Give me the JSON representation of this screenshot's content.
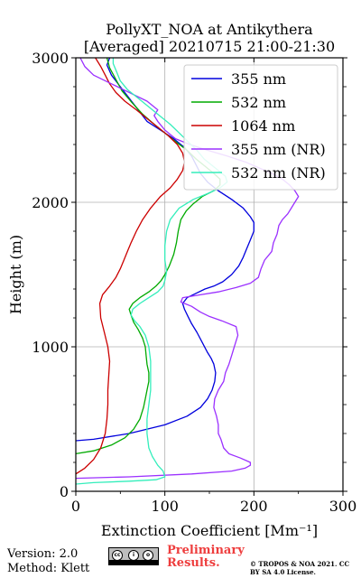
{
  "chart_data": {
    "type": "line",
    "title": "PollyXT_NOA at Antikythera",
    "subtitle": "[Averaged] 20210715 21:00-21:30",
    "xlabel": "Extinction Coefficient [Mm⁻¹]",
    "ylabel": "Height (m)",
    "xlim": [
      0,
      300
    ],
    "ylim": [
      0,
      3000
    ],
    "xticks": [
      "0",
      "100",
      "200",
      "300"
    ],
    "yticks": [
      "0",
      "1000",
      "2000",
      "3000"
    ],
    "grid": true,
    "legend_position": "top-right",
    "series": [
      {
        "name": "355 nm",
        "color": "#0000dd",
        "points": [
          [
            0,
            350
          ],
          [
            20,
            360
          ],
          [
            60,
            400
          ],
          [
            100,
            460
          ],
          [
            125,
            520
          ],
          [
            140,
            580
          ],
          [
            148,
            640
          ],
          [
            153,
            700
          ],
          [
            156,
            760
          ],
          [
            157,
            820
          ],
          [
            155,
            880
          ],
          [
            152,
            920
          ],
          [
            148,
            960
          ],
          [
            142,
            1030
          ],
          [
            136,
            1100
          ],
          [
            130,
            1160
          ],
          [
            126,
            1210
          ],
          [
            122,
            1260
          ],
          [
            120,
            1300
          ],
          [
            125,
            1340
          ],
          [
            135,
            1370
          ],
          [
            145,
            1400
          ],
          [
            155,
            1420
          ],
          [
            165,
            1450
          ],
          [
            175,
            1500
          ],
          [
            183,
            1560
          ],
          [
            188,
            1620
          ],
          [
            192,
            1680
          ],
          [
            196,
            1740
          ],
          [
            200,
            1800
          ],
          [
            200,
            1860
          ],
          [
            196,
            1900
          ],
          [
            188,
            1960
          ],
          [
            175,
            2020
          ],
          [
            160,
            2080
          ],
          [
            148,
            2140
          ],
          [
            140,
            2200
          ],
          [
            135,
            2260
          ],
          [
            130,
            2320
          ],
          [
            122,
            2380
          ],
          [
            110,
            2440
          ],
          [
            95,
            2500
          ],
          [
            80,
            2560
          ],
          [
            70,
            2640
          ],
          [
            60,
            2720
          ],
          [
            50,
            2800
          ],
          [
            40,
            2880
          ],
          [
            35,
            2950
          ],
          [
            38,
            3000
          ]
        ]
      },
      {
        "name": "532 nm",
        "color": "#00aa00",
        "points": [
          [
            0,
            260
          ],
          [
            20,
            280
          ],
          [
            40,
            320
          ],
          [
            55,
            370
          ],
          [
            65,
            430
          ],
          [
            72,
            500
          ],
          [
            76,
            580
          ],
          [
            78,
            640
          ],
          [
            80,
            700
          ],
          [
            82,
            760
          ],
          [
            82,
            820
          ],
          [
            80,
            880
          ],
          [
            79,
            940
          ],
          [
            78,
            1000
          ],
          [
            75,
            1060
          ],
          [
            70,
            1120
          ],
          [
            65,
            1170
          ],
          [
            62,
            1220
          ],
          [
            60,
            1260
          ],
          [
            64,
            1300
          ],
          [
            72,
            1340
          ],
          [
            82,
            1380
          ],
          [
            90,
            1420
          ],
          [
            96,
            1460
          ],
          [
            100,
            1500
          ],
          [
            105,
            1560
          ],
          [
            110,
            1640
          ],
          [
            113,
            1720
          ],
          [
            115,
            1800
          ],
          [
            118,
            1880
          ],
          [
            124,
            1940
          ],
          [
            132,
            1990
          ],
          [
            142,
            2040
          ],
          [
            155,
            2080
          ],
          [
            162,
            2120
          ],
          [
            162,
            2160
          ],
          [
            155,
            2200
          ],
          [
            145,
            2250
          ],
          [
            135,
            2300
          ],
          [
            125,
            2360
          ],
          [
            112,
            2420
          ],
          [
            100,
            2480
          ],
          [
            88,
            2540
          ],
          [
            75,
            2610
          ],
          [
            63,
            2690
          ],
          [
            52,
            2770
          ],
          [
            45,
            2850
          ],
          [
            38,
            2930
          ],
          [
            35,
            3000
          ]
        ]
      },
      {
        "name": "1064 nm",
        "color": "#cc0000",
        "points": [
          [
            0,
            120
          ],
          [
            10,
            160
          ],
          [
            20,
            220
          ],
          [
            28,
            300
          ],
          [
            33,
            400
          ],
          [
            35,
            500
          ],
          [
            36,
            600
          ],
          [
            36,
            700
          ],
          [
            37,
            800
          ],
          [
            38,
            900
          ],
          [
            36,
            1000
          ],
          [
            32,
            1100
          ],
          [
            28,
            1200
          ],
          [
            27,
            1300
          ],
          [
            30,
            1360
          ],
          [
            38,
            1420
          ],
          [
            45,
            1480
          ],
          [
            50,
            1540
          ],
          [
            54,
            1600
          ],
          [
            58,
            1660
          ],
          [
            62,
            1720
          ],
          [
            68,
            1800
          ],
          [
            75,
            1880
          ],
          [
            84,
            1960
          ],
          [
            95,
            2040
          ],
          [
            106,
            2100
          ],
          [
            114,
            2160
          ],
          [
            120,
            2220
          ],
          [
            122,
            2280
          ],
          [
            120,
            2340
          ],
          [
            114,
            2400
          ],
          [
            104,
            2460
          ],
          [
            92,
            2520
          ],
          [
            80,
            2580
          ],
          [
            68,
            2640
          ],
          [
            55,
            2700
          ],
          [
            45,
            2760
          ],
          [
            38,
            2820
          ],
          [
            33,
            2880
          ],
          [
            28,
            2940
          ],
          [
            22,
            3000
          ]
        ]
      },
      {
        "name": "355 nm (NR)",
        "color": "#9b30ff",
        "points": [
          [
            0,
            90
          ],
          [
            60,
            100
          ],
          [
            130,
            120
          ],
          [
            175,
            140
          ],
          [
            190,
            160
          ],
          [
            196,
            180
          ],
          [
            196,
            200
          ],
          [
            185,
            230
          ],
          [
            172,
            260
          ],
          [
            166,
            300
          ],
          [
            163,
            360
          ],
          [
            160,
            400
          ],
          [
            160,
            460
          ],
          [
            158,
            520
          ],
          [
            155,
            580
          ],
          [
            156,
            640
          ],
          [
            160,
            700
          ],
          [
            166,
            760
          ],
          [
            168,
            820
          ],
          [
            172,
            880
          ],
          [
            175,
            940
          ],
          [
            178,
            1000
          ],
          [
            182,
            1080
          ],
          [
            180,
            1140
          ],
          [
            164,
            1180
          ],
          [
            150,
            1210
          ],
          [
            140,
            1240
          ],
          [
            130,
            1280
          ],
          [
            118,
            1310
          ],
          [
            120,
            1340
          ],
          [
            140,
            1360
          ],
          [
            160,
            1380
          ],
          [
            180,
            1410
          ],
          [
            196,
            1440
          ],
          [
            205,
            1480
          ],
          [
            208,
            1540
          ],
          [
            212,
            1600
          ],
          [
            220,
            1660
          ],
          [
            222,
            1720
          ],
          [
            226,
            1780
          ],
          [
            228,
            1840
          ],
          [
            232,
            1880
          ],
          [
            238,
            1920
          ],
          [
            242,
            1960
          ],
          [
            246,
            2000
          ],
          [
            250,
            2040
          ],
          [
            246,
            2080
          ],
          [
            240,
            2120
          ],
          [
            232,
            2160
          ],
          [
            220,
            2200
          ],
          [
            205,
            2240
          ],
          [
            190,
            2280
          ],
          [
            170,
            2320
          ],
          [
            148,
            2360
          ],
          [
            128,
            2400
          ],
          [
            112,
            2440
          ],
          [
            100,
            2500
          ],
          [
            92,
            2560
          ],
          [
            88,
            2600
          ],
          [
            92,
            2640
          ],
          [
            80,
            2700
          ],
          [
            60,
            2760
          ],
          [
            40,
            2820
          ],
          [
            20,
            2880
          ],
          [
            10,
            2940
          ],
          [
            5,
            3000
          ]
        ]
      },
      {
        "name": "532 nm (NR)",
        "color": "#33eebb",
        "points": [
          [
            0,
            50
          ],
          [
            20,
            60
          ],
          [
            60,
            70
          ],
          [
            90,
            80
          ],
          [
            100,
            100
          ],
          [
            98,
            140
          ],
          [
            92,
            180
          ],
          [
            86,
            240
          ],
          [
            82,
            300
          ],
          [
            80,
            400
          ],
          [
            80,
            500
          ],
          [
            82,
            600
          ],
          [
            84,
            700
          ],
          [
            84,
            800
          ],
          [
            84,
            900
          ],
          [
            82,
            1000
          ],
          [
            78,
            1080
          ],
          [
            72,
            1140
          ],
          [
            66,
            1180
          ],
          [
            62,
            1220
          ],
          [
            64,
            1260
          ],
          [
            72,
            1300
          ],
          [
            82,
            1340
          ],
          [
            92,
            1380
          ],
          [
            98,
            1420
          ],
          [
            100,
            1460
          ],
          [
            102,
            1520
          ],
          [
            100,
            1600
          ],
          [
            100,
            1700
          ],
          [
            102,
            1800
          ],
          [
            106,
            1880
          ],
          [
            116,
            1960
          ],
          [
            132,
            2020
          ],
          [
            148,
            2060
          ],
          [
            162,
            2100
          ],
          [
            170,
            2140
          ],
          [
            168,
            2180
          ],
          [
            160,
            2220
          ],
          [
            152,
            2260
          ],
          [
            144,
            2300
          ],
          [
            136,
            2360
          ],
          [
            126,
            2420
          ],
          [
            116,
            2480
          ],
          [
            106,
            2540
          ],
          [
            94,
            2600
          ],
          [
            82,
            2660
          ],
          [
            70,
            2720
          ],
          [
            58,
            2780
          ],
          [
            50,
            2840
          ],
          [
            46,
            2900
          ],
          [
            42,
            2960
          ],
          [
            42,
            3000
          ]
        ]
      }
    ]
  },
  "footer": {
    "version": "Version: 2.0",
    "method": "Method: Klett",
    "preliminary": "Preliminary Results.",
    "copyright": "© TROPOS & NOA 2021. CC BY SA 4.0 License."
  }
}
